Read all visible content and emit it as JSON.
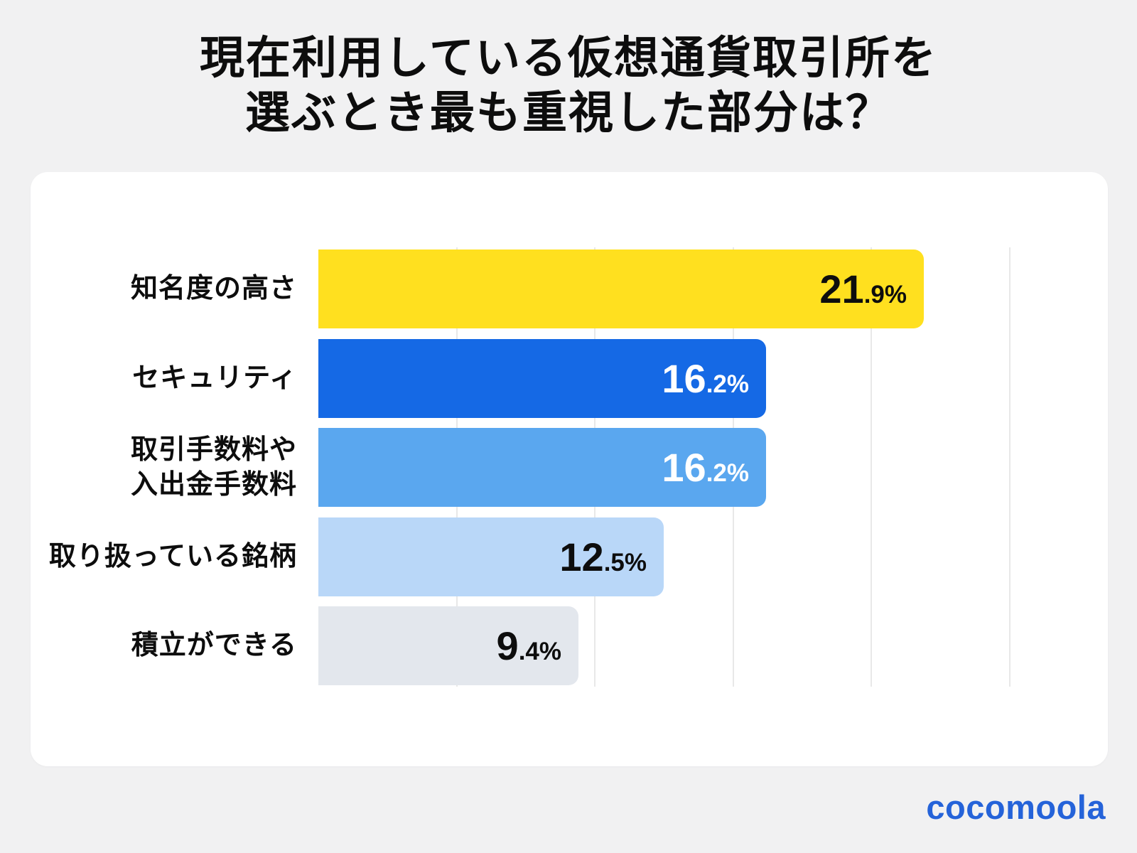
{
  "page": {
    "background": "#f1f1f2"
  },
  "title": {
    "lines": [
      "現在利用している仮想通貨取引所を",
      "選ぶとき最も重視した部分は？"
    ],
    "full_text": "現在利用している仮想通貨取引所を選ぶとき最も重視した部分は？",
    "color": "#0d0d0d"
  },
  "card": {
    "background": "#ffffff"
  },
  "brand": {
    "logo_text": "cocomoola",
    "color": "#2563d9"
  },
  "chart_data": {
    "type": "bar",
    "orientation": "horizontal",
    "title": "現在利用している仮想通貨取引所を選ぶとき最も重視した部分は？",
    "unit": "%",
    "categories": [
      "知名度の高さ",
      "セキュリティ",
      "取引手数料や入出金手数料",
      "取り扱っている銘柄",
      "積立ができる"
    ],
    "values": [
      21.9,
      16.2,
      16.2,
      12.5,
      9.4
    ],
    "xlim": [
      0,
      25
    ],
    "grid": true,
    "grid_step": 5,
    "gridline_color": "#e8e8e8",
    "legend": false,
    "bars": [
      {
        "label": "知名度の高さ",
        "label_lines": [
          "知名度の高さ"
        ],
        "value": 21.9,
        "value_text": "21.9%",
        "bar_color": "#ffe01f",
        "value_color": "#0d0d0d"
      },
      {
        "label": "セキュリティ",
        "label_lines": [
          "セキュリティ"
        ],
        "value": 16.2,
        "value_text": "16.2%",
        "bar_color": "#1569e5",
        "value_color": "#ffffff"
      },
      {
        "label": "取引手数料や入出金手数料",
        "label_lines": [
          "取引手数料や",
          "入出金手数料"
        ],
        "value": 16.2,
        "value_text": "16.2%",
        "bar_color": "#5aa7ef",
        "value_color": "#ffffff"
      },
      {
        "label": "取り扱っている銘柄",
        "label_lines": [
          "取り扱っている銘柄"
        ],
        "value": 12.5,
        "value_text": "12.5%",
        "bar_color": "#b9d7f8",
        "value_color": "#0d0d0d"
      },
      {
        "label": "積立ができる",
        "label_lines": [
          "積立ができる"
        ],
        "value": 9.4,
        "value_text": "9.4%",
        "bar_color": "#e3e7ed",
        "value_color": "#0d0d0d"
      }
    ]
  }
}
